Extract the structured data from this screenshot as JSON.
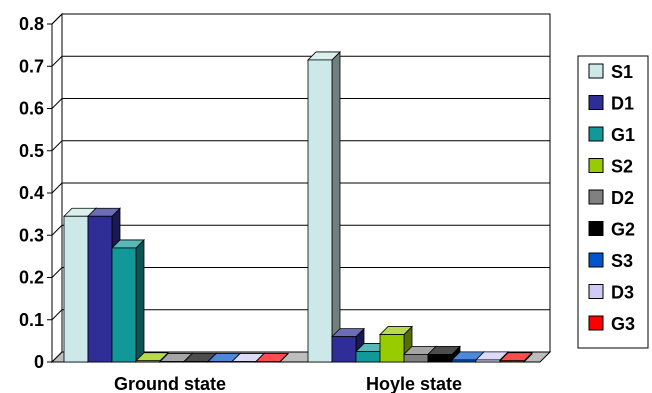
{
  "chart_data": {
    "type": "bar",
    "categories": [
      "Ground state",
      "Hoyle state"
    ],
    "ylim": [
      0,
      0.8
    ],
    "yticks": [
      "0",
      "0.1",
      "0.2",
      "0.3",
      "0.4",
      "0.5",
      "0.6",
      "0.7",
      "0.8"
    ],
    "grid": true,
    "legend_position": "right",
    "series": [
      {
        "name": "S1",
        "color": "#cce8e8",
        "values": [
          0.345,
          0.715
        ]
      },
      {
        "name": "D1",
        "color": "#2e2e96",
        "values": [
          0.345,
          0.06
        ]
      },
      {
        "name": "G1",
        "color": "#119999",
        "values": [
          0.27,
          0.025
        ]
      },
      {
        "name": "S2",
        "color": "#99cc00",
        "values": [
          0.003,
          0.065
        ]
      },
      {
        "name": "D2",
        "color": "#808080",
        "values": [
          0.001,
          0.018
        ]
      },
      {
        "name": "G2",
        "color": "#000000",
        "values": [
          0.001,
          0.018
        ]
      },
      {
        "name": "S3",
        "color": "#0055cc",
        "values": [
          0.001,
          0.005
        ]
      },
      {
        "name": "D3",
        "color": "#ccccf5",
        "values": [
          0.001,
          0.005
        ]
      },
      {
        "name": "G3",
        "color": "#ff0000",
        "values": [
          0.001,
          0.003
        ]
      }
    ]
  }
}
